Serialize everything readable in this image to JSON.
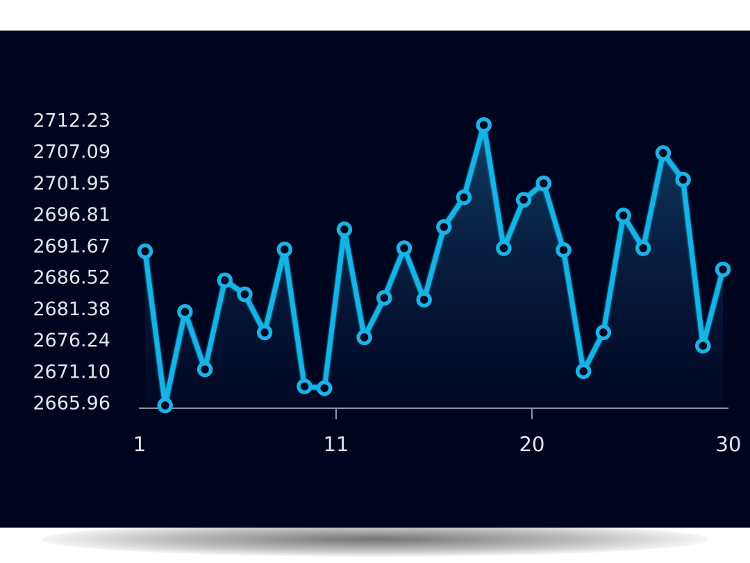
{
  "colors": {
    "page_background": "#ffffff",
    "panel_background": "#00051f",
    "line": "#19b3e6",
    "axis": "#8a93ad",
    "tick_text": "#e3e6ee"
  },
  "chart_data": {
    "type": "area",
    "title": "",
    "xlabel": "",
    "ylabel": "",
    "x": [
      1,
      2,
      3,
      4,
      5,
      6,
      7,
      8,
      9,
      10,
      11,
      12,
      13,
      14,
      15,
      16,
      17,
      18,
      19,
      20,
      21,
      22,
      23,
      24,
      25,
      26,
      27,
      28,
      29,
      30
    ],
    "series": [
      {
        "values": [
          2691.4,
          2665.96,
          2681.4,
          2671.9,
          2686.6,
          2684.3,
          2678.0,
          2691.7,
          2669.1,
          2668.8,
          2695.0,
          2677.2,
          2683.7,
          2691.9,
          2683.4,
          2695.4,
          2700.3,
          2712.23,
          2691.9,
          2699.9,
          2702.6,
          2691.6,
          2671.6,
          2678.0,
          2697.3,
          2691.9,
          2707.6,
          2703.2,
          2675.8,
          2688.4
        ]
      }
    ],
    "xlim": [
      1,
      30
    ],
    "ylim": [
      2665.96,
      2712.23
    ],
    "y_ticks": [
      "2712.23",
      "2707.09",
      "2701.95",
      "2696.81",
      "2691.67",
      "2686.52",
      "2681.38",
      "2676.24",
      "2671.10",
      "2665.96"
    ],
    "x_ticks": [
      "1",
      "11",
      "20",
      "30"
    ],
    "x_tick_values": [
      1,
      11,
      20,
      30
    ],
    "grid": false,
    "legend": "none"
  }
}
